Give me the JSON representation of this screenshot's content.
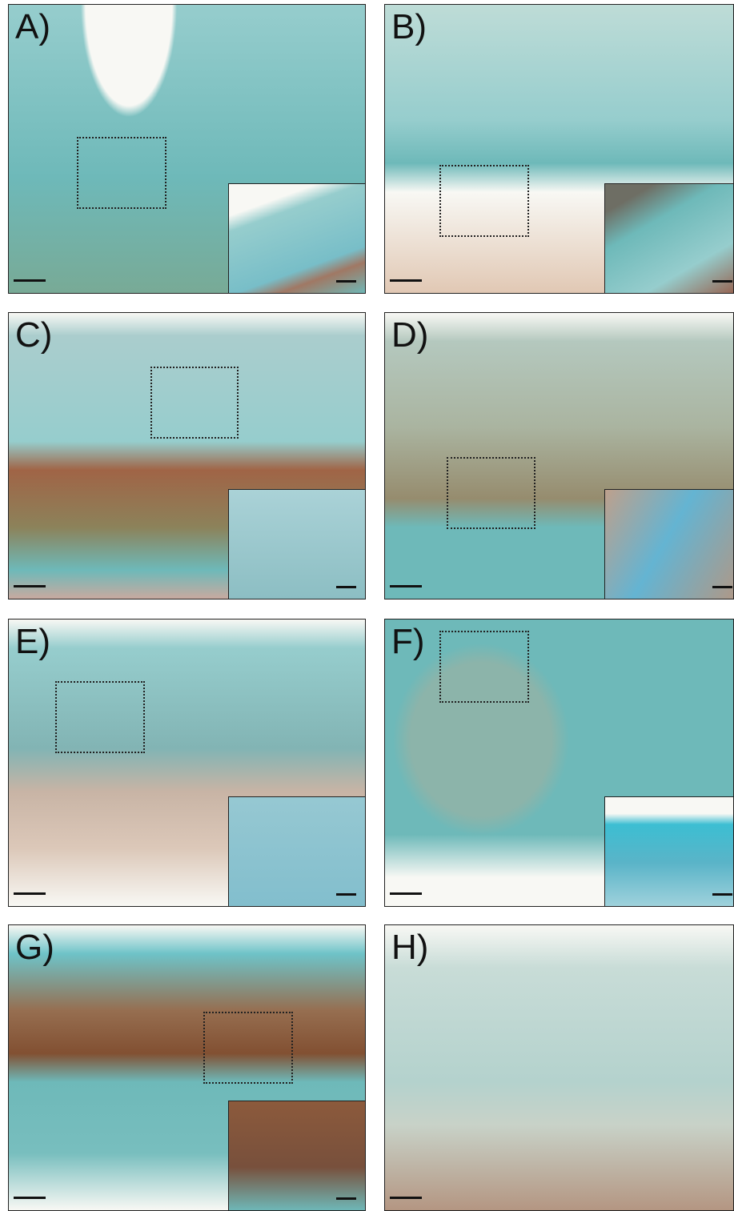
{
  "panels": [
    {
      "label": "A)"
    },
    {
      "label": "B)"
    },
    {
      "label": "C)"
    },
    {
      "label": "D)"
    },
    {
      "label": "E)"
    },
    {
      "label": "F)"
    },
    {
      "label": "G)"
    },
    {
      "label": "H)"
    }
  ]
}
